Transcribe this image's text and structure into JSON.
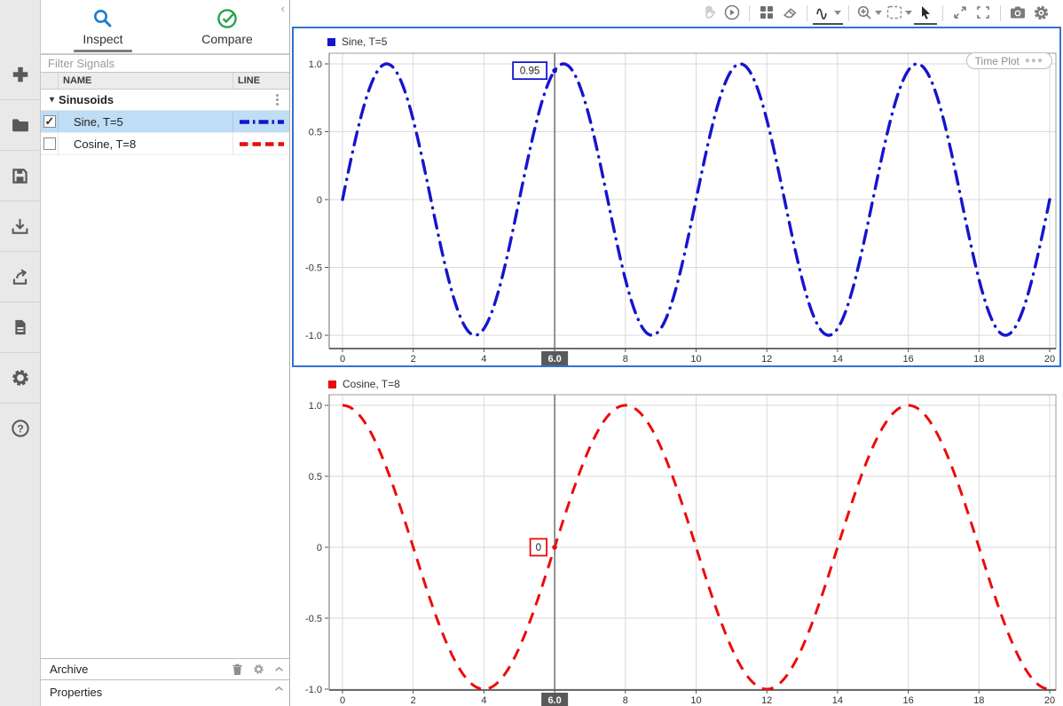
{
  "app": {
    "collapse_label": "‹"
  },
  "sidebar": {
    "icons": [
      {
        "name": "add"
      },
      {
        "name": "open-folder"
      },
      {
        "name": "save"
      },
      {
        "name": "import"
      },
      {
        "name": "export"
      },
      {
        "name": "report"
      },
      {
        "name": "settings"
      },
      {
        "name": "help"
      }
    ]
  },
  "panel": {
    "tabs": {
      "inspect": "Inspect",
      "compare": "Compare",
      "inspect_active": true
    },
    "filter_placeholder": "Filter Signals",
    "columns": {
      "name": "NAME",
      "line": "LINE"
    },
    "group": {
      "label": "Sinusoids",
      "caret": "▾"
    },
    "signals": [
      {
        "name": "Sine, T=5",
        "checked": true,
        "selected": true,
        "color": "#1515cd",
        "style": "dash-dot"
      },
      {
        "name": "Cosine, T=8",
        "checked": false,
        "selected": false,
        "color": "#ec0c0c",
        "style": "dash"
      }
    ],
    "archive_label": "Archive",
    "properties_label": "Properties"
  },
  "toolbar": {
    "icons": [
      "pan",
      "replay",
      "layout",
      "erase",
      "signal-type",
      "zoom-in",
      "zoom-fit",
      "pointer",
      "expand",
      "fullscreen",
      "snapshot",
      "settings"
    ]
  },
  "colors": {
    "selection_border": "#3273cf",
    "cursor": "#666666",
    "cursor_badge": "#595959",
    "grid": "#dadada",
    "selected_row": "#bfddf5",
    "sine": "#1515cd",
    "cosine": "#ec0c0c"
  },
  "chart_data": [
    {
      "type": "line",
      "legend": "Sine, T=5",
      "plot_type_label": "Time Plot",
      "selected": true,
      "series": [
        {
          "name": "Sine, T=5",
          "func": "sin",
          "formula": "sin(2*pi*t/5)",
          "period": 5,
          "amplitude": 1
        }
      ],
      "x_range": [
        0,
        20
      ],
      "x_ticks": [
        0,
        2,
        4,
        6,
        8,
        10,
        12,
        14,
        16,
        18,
        20
      ],
      "x_tick_labels": [
        "0",
        "2",
        "4",
        "6",
        "8",
        "10",
        "12",
        "14",
        "16",
        "18",
        "20"
      ],
      "y_ticks": [
        -1,
        -0.5,
        0,
        0.5,
        1
      ],
      "y_tick_labels": [
        "-1.0",
        "-0.5",
        "0",
        "0.5",
        "1.0"
      ],
      "ylim": [
        -1.1,
        1.1
      ],
      "grid": true,
      "line_color": "#1515cd",
      "line_style": "dash-dot",
      "cursor": {
        "x": 6,
        "x_label": "6.0",
        "value": 0.95,
        "value_label": "0.95"
      }
    },
    {
      "type": "line",
      "legend": "Cosine, T=8",
      "selected": false,
      "series": [
        {
          "name": "Cosine, T=8",
          "func": "cos",
          "formula": "cos(2*pi*t/8)",
          "period": 8,
          "amplitude": 1
        }
      ],
      "x_range": [
        0,
        20
      ],
      "x_ticks": [
        0,
        2,
        4,
        6,
        8,
        10,
        12,
        14,
        16,
        18,
        20
      ],
      "x_tick_labels": [
        "0",
        "2",
        "4",
        "6",
        "8",
        "10",
        "12",
        "14",
        "16",
        "18",
        "20"
      ],
      "y_ticks": [
        -1,
        -0.5,
        0,
        0.5,
        1
      ],
      "y_tick_labels": [
        "-1.0",
        "-0.5",
        "0",
        "0.5",
        "1.0"
      ],
      "ylim": [
        -1.01,
        1.08
      ],
      "grid": true,
      "line_color": "#ec0c0c",
      "line_style": "dash",
      "cursor": {
        "x": 6,
        "x_label": "6.0",
        "value": 0,
        "value_label": "0"
      }
    }
  ]
}
